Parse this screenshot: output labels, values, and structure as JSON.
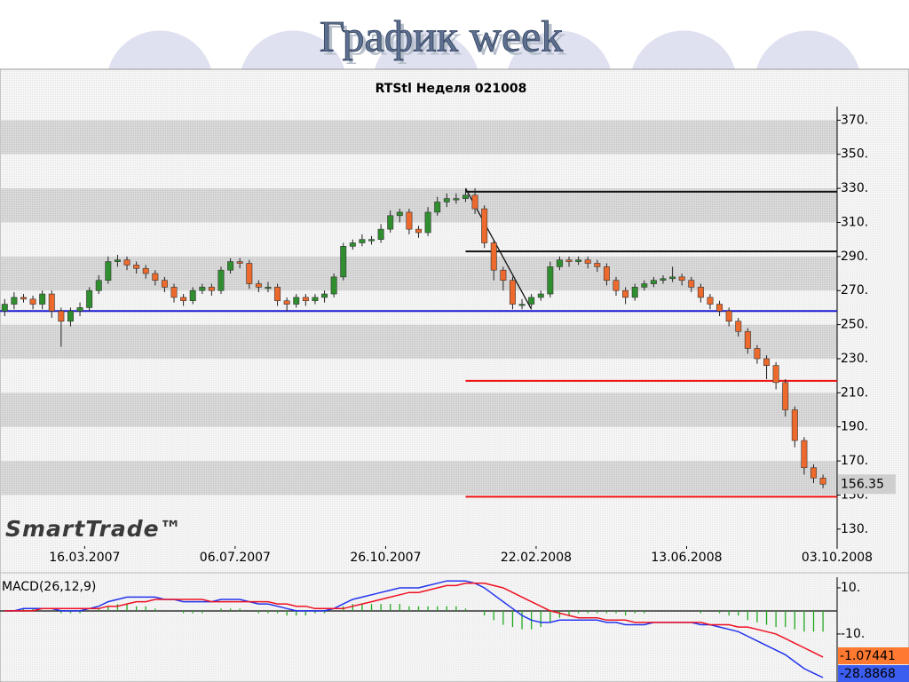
{
  "slide_title": "График week",
  "chart_data": {
    "type": "candlestick",
    "title": "RTStl Неделя 021008",
    "watermark": "SmartTrade™",
    "up_color": "#2f8f2f",
    "down_color": "#ee6a2c",
    "xlim": [
      -0.5,
      88.5
    ],
    "xticks": [
      {
        "value": 8.5,
        "label": "16.03.2007"
      },
      {
        "value": 24.5,
        "label": "06.07.2007"
      },
      {
        "value": 40.5,
        "label": "26.10.2007"
      },
      {
        "value": 56.5,
        "label": "22.02.2008"
      },
      {
        "value": 72.5,
        "label": "13.06.2008"
      },
      {
        "value": 88.5,
        "label": "03.10.2008"
      }
    ],
    "ylim": [
      120,
      378
    ],
    "yticks": [
      {
        "value": 130,
        "label": "130."
      },
      {
        "value": 150,
        "label": "150."
      },
      {
        "value": 170,
        "label": "170."
      },
      {
        "value": 190,
        "label": "190."
      },
      {
        "value": 210,
        "label": "210."
      },
      {
        "value": 230,
        "label": "230."
      },
      {
        "value": 250,
        "label": "250."
      },
      {
        "value": 270,
        "label": "270."
      },
      {
        "value": 290,
        "label": "290."
      },
      {
        "value": 310,
        "label": "310."
      },
      {
        "value": 330,
        "label": "330."
      },
      {
        "value": 350,
        "label": "350."
      },
      {
        "value": 370,
        "label": "370."
      }
    ],
    "open": [
      258,
      262,
      266,
      265,
      262,
      268,
      258,
      252,
      258,
      260,
      270,
      276,
      287,
      288,
      285,
      283,
      280,
      276,
      272,
      266,
      264,
      270,
      272,
      270,
      282,
      287,
      286,
      274,
      272,
      272,
      264,
      262,
      266,
      264,
      266,
      268,
      278,
      296,
      298,
      300,
      300,
      306,
      314,
      316,
      306,
      304,
      316,
      322,
      324,
      324,
      326,
      318,
      298,
      282,
      276,
      262,
      262,
      266,
      268,
      284,
      288,
      287,
      288,
      286,
      284,
      276,
      270,
      266,
      272,
      274,
      276,
      277,
      278,
      276,
      272,
      266,
      262,
      258,
      252,
      246,
      236,
      230,
      226,
      216,
      200,
      182,
      166,
      160
    ],
    "high": [
      265,
      269,
      268,
      267,
      270,
      270,
      260,
      260,
      263,
      272,
      279,
      290,
      291,
      290,
      287,
      285,
      282,
      278,
      274,
      268,
      272,
      274,
      274,
      284,
      289,
      289,
      288,
      276,
      275,
      274,
      266,
      268,
      268,
      268,
      270,
      280,
      298,
      300,
      303,
      302,
      309,
      317,
      318,
      318,
      308,
      319,
      325,
      327,
      327,
      330,
      330,
      320,
      300,
      284,
      278,
      265,
      268,
      270,
      287,
      290,
      290,
      290,
      290,
      288,
      286,
      278,
      272,
      274,
      276,
      278,
      279,
      284,
      280,
      278,
      274,
      268,
      264,
      260,
      254,
      248,
      238,
      232,
      228,
      218,
      202,
      184,
      168,
      162
    ],
    "low": [
      255,
      259,
      263,
      259,
      259,
      254,
      237,
      249,
      255,
      258,
      268,
      274,
      284,
      282,
      280,
      277,
      273,
      269,
      263,
      261,
      262,
      268,
      267,
      268,
      280,
      283,
      271,
      269,
      269,
      261,
      258,
      260,
      261,
      262,
      263,
      266,
      276,
      294,
      296,
      297,
      298,
      304,
      310,
      303,
      301,
      302,
      314,
      319,
      321,
      322,
      315,
      295,
      276,
      270,
      259,
      259,
      260,
      264,
      266,
      282,
      284,
      285,
      283,
      281,
      273,
      267,
      262,
      264,
      270,
      272,
      274,
      275,
      273,
      269,
      263,
      259,
      255,
      249,
      243,
      233,
      227,
      218,
      212,
      196,
      178,
      162,
      157,
      154
    ],
    "close": [
      262,
      266,
      265,
      262,
      268,
      258,
      252,
      258,
      260,
      270,
      276,
      287,
      288,
      285,
      283,
      280,
      276,
      272,
      266,
      264,
      270,
      272,
      270,
      282,
      287,
      286,
      274,
      272,
      272,
      264,
      262,
      266,
      264,
      266,
      268,
      278,
      296,
      298,
      300,
      300,
      306,
      314,
      316,
      306,
      304,
      316,
      322,
      324,
      324,
      326,
      318,
      298,
      282,
      276,
      262,
      262,
      266,
      268,
      284,
      288,
      287,
      288,
      286,
      284,
      276,
      270,
      266,
      272,
      274,
      276,
      277,
      278,
      276,
      272,
      266,
      262,
      258,
      252,
      246,
      236,
      230,
      226,
      216,
      200,
      182,
      166,
      160,
      156.35
    ],
    "levels": [
      {
        "value": 328,
        "color": "#111111",
        "from": 49
      },
      {
        "value": 293,
        "color": "#111111",
        "from": 49
      },
      {
        "value": 258,
        "color": "#1a1ad0",
        "from": -0.5
      },
      {
        "value": 217,
        "color": "#ee1111",
        "from": 49
      },
      {
        "value": 149,
        "color": "#ee1111",
        "from": 49
      }
    ],
    "trendline": {
      "color": "#111111",
      "from": [
        49,
        330
      ],
      "to": [
        56,
        259
      ]
    },
    "macd": {
      "label": "MACD(26,12,9)",
      "ylim": [
        -30.8,
        14.6
      ],
      "yticks": [
        {
          "value": 10,
          "label": "10."
        },
        {
          "value": -10,
          "label": "-10."
        }
      ],
      "current_values": [
        -1.07441,
        -28.8868
      ],
      "current_colors": [
        "#ff7a30",
        "#3c5ef0"
      ],
      "histogram_color": "#22aa22",
      "histogram": [
        0,
        0,
        1,
        1,
        0,
        0,
        -1,
        -1,
        -1,
        0,
        1,
        2,
        3,
        3,
        2,
        2,
        1,
        0,
        0,
        -1,
        -1,
        -1,
        0,
        1,
        1,
        1,
        0,
        -1,
        -1,
        -1,
        -2,
        -2,
        -2,
        -1,
        -1,
        0,
        2,
        3,
        3,
        3,
        3,
        3,
        3,
        2,
        2,
        2,
        2,
        2,
        2,
        1,
        0,
        -2,
        -4,
        -6,
        -7,
        -8,
        -8,
        -7,
        -5,
        -3,
        -2,
        -1,
        -1,
        -1,
        -1,
        -1,
        -2,
        -1,
        -1,
        0,
        0,
        0,
        0,
        0,
        -1,
        0,
        -1,
        -2,
        -2,
        -4,
        -5,
        -6,
        -7,
        -7,
        -8,
        -9,
        -9,
        -9
      ],
      "series": [
        {
          "color": "#2233ee",
          "values": [
            0,
            0,
            1,
            1,
            1,
            1,
            0,
            0,
            0,
            1,
            2,
            4,
            5,
            6,
            6,
            6,
            6,
            5,
            5,
            4,
            4,
            4,
            4,
            5,
            5,
            5,
            4,
            3,
            3,
            2,
            1,
            0,
            0,
            0,
            0,
            1,
            3,
            5,
            6,
            7,
            8,
            9,
            10,
            10,
            10,
            11,
            12,
            13,
            13,
            13,
            12,
            10,
            7,
            4,
            1,
            -2,
            -4,
            -5,
            -5,
            -4,
            -4,
            -4,
            -4,
            -4,
            -5,
            -5,
            -6,
            -6,
            -6,
            -5,
            -5,
            -5,
            -5,
            -5,
            -6,
            -6,
            -7,
            -8,
            -9,
            -11,
            -13,
            -15,
            -17,
            -19,
            -22,
            -25,
            -27,
            -28.8868
          ]
        },
        {
          "color": "#ee1122",
          "values": [
            0,
            0,
            0,
            0,
            1,
            1,
            1,
            1,
            1,
            1,
            1,
            2,
            2,
            3,
            4,
            4,
            5,
            5,
            5,
            5,
            5,
            5,
            4,
            4,
            4,
            4,
            4,
            4,
            4,
            3,
            3,
            2,
            2,
            1,
            1,
            1,
            1,
            2,
            3,
            4,
            5,
            6,
            7,
            8,
            8,
            9,
            10,
            11,
            11,
            12,
            12,
            12,
            11,
            10,
            8,
            6,
            4,
            2,
            0,
            -1,
            -2,
            -3,
            -3,
            -3,
            -4,
            -4,
            -4,
            -5,
            -5,
            -5,
            -5,
            -5,
            -5,
            -5,
            -5,
            -6,
            -6,
            -6,
            -7,
            -7,
            -8,
            -9,
            -10,
            -12,
            -14,
            -16,
            -18,
            -20
          ]
        }
      ]
    }
  }
}
